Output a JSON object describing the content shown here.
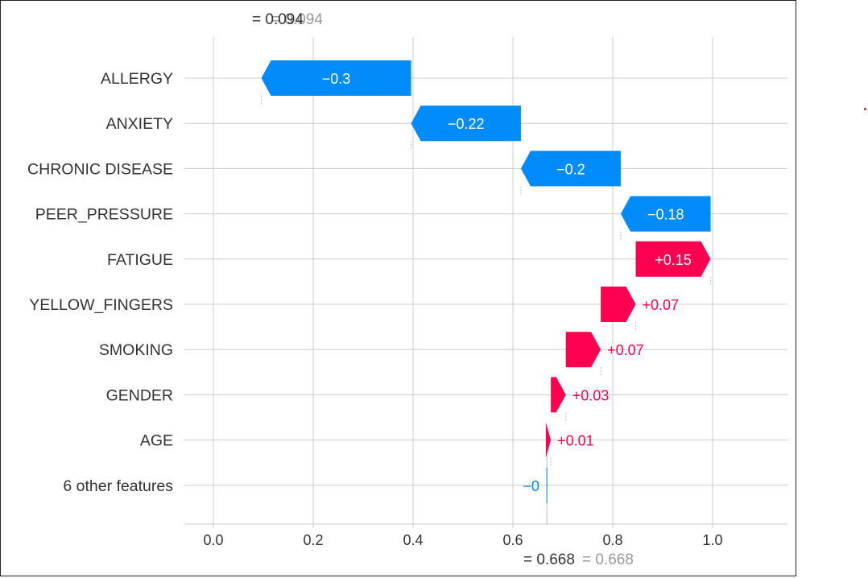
{
  "chart_data": {
    "type": "waterfall",
    "expected_value_label": "= 0.668",
    "expected_value_ghost": "= 0.668",
    "output_value_label": "= 0.094",
    "output_value_ghost": "= 0.094",
    "xlim": [
      -0.06,
      1.14
    ],
    "xticks": [
      {
        "value": 0.0,
        "label": "0.0"
      },
      {
        "value": 0.2,
        "label": "0.2"
      },
      {
        "value": 0.4,
        "label": "0.4"
      },
      {
        "value": 0.6,
        "label": "0.6"
      },
      {
        "value": 0.8,
        "label": "0.8"
      },
      {
        "value": 1.0,
        "label": "1.0"
      }
    ],
    "features": [
      {
        "name": "ALLERGY ",
        "value": -0.3,
        "label": "−0.3",
        "start": 0.396,
        "end": 0.096
      },
      {
        "name": "ANXIETY",
        "value": -0.22,
        "label": "−0.22",
        "start": 0.616,
        "end": 0.396
      },
      {
        "name": "CHRONIC DISEASE",
        "value": -0.2,
        "label": "−0.2",
        "start": 0.816,
        "end": 0.616
      },
      {
        "name": "PEER_PRESSURE",
        "value": -0.18,
        "label": "−0.18",
        "start": 0.996,
        "end": 0.816
      },
      {
        "name": "FATIGUE ",
        "value": 0.15,
        "label": "+0.15",
        "start": 0.846,
        "end": 0.996
      },
      {
        "name": "YELLOW_FINGERS",
        "value": 0.07,
        "label": "+0.07",
        "start": 0.776,
        "end": 0.846
      },
      {
        "name": "SMOKING",
        "value": 0.07,
        "label": "+0.07",
        "start": 0.706,
        "end": 0.776
      },
      {
        "name": "GENDER",
        "value": 0.03,
        "label": "+0.03",
        "start": 0.676,
        "end": 0.706
      },
      {
        "name": "AGE",
        "value": 0.01,
        "label": "+0.01",
        "start": 0.666,
        "end": 0.676
      },
      {
        "name": "6 other features",
        "value": -0.0,
        "label": "−0",
        "start": 0.668,
        "end": 0.666
      }
    ],
    "colors": {
      "positive": "#ff0051",
      "negative": "#008bfb",
      "grid": "#cccccc",
      "text": "#333333",
      "ghost": "#999999"
    }
  }
}
